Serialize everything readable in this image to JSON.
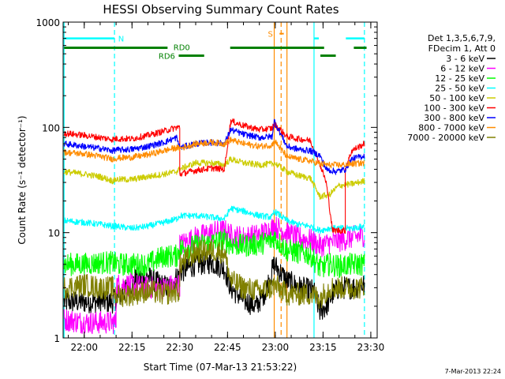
{
  "chart_data": {
    "type": "line",
    "title": "HESSI Observing Summary Count Rates",
    "xlabel": "Start Time (07-Mar-13 21:53:22)",
    "ylabel": "Count Rate (s⁻¹ detector⁻¹)",
    "x_ticks": [
      "22:00",
      "22:15",
      "22:30",
      "22:45",
      "23:00",
      "23:15",
      "23:30"
    ],
    "x_range": [
      "21:53:22",
      "23:32:00"
    ],
    "y_ticks": [
      "1",
      "10",
      "100",
      "1000"
    ],
    "ylim": [
      1,
      1000
    ],
    "y_scale": "log",
    "legend_header": [
      "Det 1,3,5,6,7,9,",
      "FDecim 1, Att 0"
    ],
    "legend_position": "right",
    "footer_date": "7-Mar-2013 22:24",
    "annotations": [
      {
        "label": "N",
        "color": "#00ffff",
        "y": 700
      },
      {
        "label": "S",
        "color": "#ff8c00",
        "y": 700
      },
      {
        "label": "RD0",
        "color": "#008000",
        "y": 570
      },
      {
        "label": "RD6",
        "color": "#008000",
        "y": 480
      }
    ],
    "vertical_markers": [
      {
        "time": "21:53:40",
        "color": "#00ffff",
        "style": "solid"
      },
      {
        "time": "22:09:30",
        "color": "#00ffff",
        "style": "dashed"
      },
      {
        "time": "22:59:40",
        "color": "#ff8c00",
        "style": "solid"
      },
      {
        "time": "23:01:50",
        "color": "#ff8c00",
        "style": "dashed"
      },
      {
        "time": "23:03:40",
        "color": "#ff8c00",
        "style": "solid"
      },
      {
        "time": "23:12:10",
        "color": "#00ffff",
        "style": "solid"
      },
      {
        "time": "23:28:00",
        "color": "#00ffff",
        "style": "dashed"
      }
    ],
    "series": [
      {
        "name": "3 - 6 keV",
        "color": "#000000",
        "points": [
          [
            "21:53:40",
            2.2
          ],
          [
            "22:09:00",
            2.2
          ],
          [
            "22:13:00",
            2.8
          ],
          [
            "22:16:00",
            3.6
          ],
          [
            "22:20:00",
            3.8
          ],
          [
            "22:24:00",
            3.2
          ],
          [
            "22:27:00",
            3.0
          ],
          [
            "22:30:00",
            4.2
          ],
          [
            "22:35:00",
            5.0
          ],
          [
            "22:40:00",
            5.2
          ],
          [
            "22:44:00",
            4.6
          ],
          [
            "22:46:00",
            3.0
          ],
          [
            "22:50:00",
            2.3
          ],
          [
            "22:54:00",
            2.0
          ],
          [
            "22:57:00",
            2.8
          ],
          [
            "22:59:40",
            5.0
          ],
          [
            "23:03:40",
            3.5
          ],
          [
            "23:08:00",
            3.0
          ],
          [
            "23:12:00",
            2.8
          ],
          [
            "23:14:00",
            1.8
          ],
          [
            "23:16:00",
            2.0
          ],
          [
            "23:18:00",
            2.6
          ],
          [
            "23:20:00",
            3.0
          ],
          [
            "23:24:00",
            3.0
          ],
          [
            "23:28:00",
            3.2
          ]
        ]
      },
      {
        "name": "6 - 12 keV",
        "color": "#ff00ff",
        "points": [
          [
            "21:53:40",
            1.5
          ],
          [
            "22:00:00",
            1.4
          ],
          [
            "22:05:00",
            1.4
          ],
          [
            "22:09:00",
            1.4
          ],
          [
            "22:10:00",
            3.2
          ],
          [
            "22:15:00",
            3.2
          ],
          [
            "22:20:00",
            3.0
          ],
          [
            "22:25:00",
            3.0
          ],
          [
            "22:29:00",
            3.2
          ],
          [
            "22:30:00",
            7.6
          ],
          [
            "22:35:00",
            9.0
          ],
          [
            "22:40:00",
            10.0
          ],
          [
            "22:44:00",
            10.5
          ],
          [
            "22:46:00",
            9.5
          ],
          [
            "22:50:00",
            9.0
          ],
          [
            "22:55:00",
            9.5
          ],
          [
            "22:59:00",
            11.0
          ],
          [
            "22:59:40",
            11.5
          ],
          [
            "23:03:40",
            10.0
          ],
          [
            "23:07:00",
            9.0
          ],
          [
            "23:11:00",
            8.5
          ],
          [
            "23:14:00",
            7.5
          ],
          [
            "23:17:00",
            8.0
          ],
          [
            "23:21:00",
            8.5
          ],
          [
            "23:24:00",
            9.0
          ],
          [
            "23:28:00",
            9.5
          ]
        ]
      },
      {
        "name": "12 - 25 keV",
        "color": "#00ff00",
        "points": [
          [
            "21:53:40",
            5.0
          ],
          [
            "22:00:00",
            5.0
          ],
          [
            "22:05:00",
            5.2
          ],
          [
            "22:09:00",
            5.2
          ],
          [
            "22:10:00",
            5.0
          ],
          [
            "22:15:00",
            5.0
          ],
          [
            "22:20:00",
            5.0
          ],
          [
            "22:25:00",
            6.0
          ],
          [
            "22:29:00",
            6.0
          ],
          [
            "22:30:00",
            7.0
          ],
          [
            "22:35:00",
            7.5
          ],
          [
            "22:40:00",
            8.0
          ],
          [
            "22:44:00",
            8.5
          ],
          [
            "22:46:00",
            7.8
          ],
          [
            "22:50:00",
            7.5
          ],
          [
            "22:55:00",
            7.8
          ],
          [
            "22:59:00",
            8.5
          ],
          [
            "22:59:40",
            9.0
          ],
          [
            "23:03:40",
            6.8
          ],
          [
            "23:07:00",
            6.5
          ],
          [
            "23:11:00",
            6.2
          ],
          [
            "23:14:00",
            4.6
          ],
          [
            "23:17:00",
            5.0
          ],
          [
            "23:20:00",
            4.8
          ],
          [
            "23:24:00",
            5.0
          ],
          [
            "23:28:00",
            5.0
          ]
        ]
      },
      {
        "name": "25 - 50 keV",
        "color": "#00ffff",
        "points": [
          [
            "21:53:40",
            13.0
          ],
          [
            "22:00:00",
            12.5
          ],
          [
            "22:05:00",
            12.0
          ],
          [
            "22:09:00",
            11.5
          ],
          [
            "22:10:00",
            11.5
          ],
          [
            "22:15:00",
            11.0
          ],
          [
            "22:20:00",
            11.5
          ],
          [
            "22:25:00",
            12.5
          ],
          [
            "22:29:00",
            13.5
          ],
          [
            "22:30:00",
            14.5
          ],
          [
            "22:35:00",
            14.5
          ],
          [
            "22:40:00",
            14.0
          ],
          [
            "22:44:00",
            13.5
          ],
          [
            "22:46:00",
            17.0
          ],
          [
            "22:50:00",
            16.0
          ],
          [
            "22:55:00",
            14.5
          ],
          [
            "22:59:00",
            14.0
          ],
          [
            "22:59:40",
            16.0
          ],
          [
            "23:03:40",
            13.0
          ],
          [
            "23:07:00",
            12.0
          ],
          [
            "23:11:00",
            11.5
          ],
          [
            "23:14:00",
            10.5
          ],
          [
            "23:17:00",
            11.0
          ],
          [
            "23:21:00",
            11.0
          ],
          [
            "23:24:00",
            11.0
          ],
          [
            "23:28:00",
            11.5
          ]
        ]
      },
      {
        "name": "50 - 100 keV",
        "color": "#cccc00",
        "points": [
          [
            "21:53:40",
            38.0
          ],
          [
            "22:00:00",
            36.0
          ],
          [
            "22:05:00",
            34.0
          ],
          [
            "22:09:00",
            31.0
          ],
          [
            "22:10:00",
            32.0
          ],
          [
            "22:15:00",
            32.0
          ],
          [
            "22:20:00",
            34.0
          ],
          [
            "22:25:00",
            36.0
          ],
          [
            "22:29:00",
            38.0
          ],
          [
            "22:30:00",
            40.0
          ],
          [
            "22:35:00",
            46.0
          ],
          [
            "22:40:00",
            46.0
          ],
          [
            "22:44:00",
            44.0
          ],
          [
            "22:46:00",
            50.0
          ],
          [
            "22:50:00",
            46.0
          ],
          [
            "22:55:00",
            44.0
          ],
          [
            "22:59:00",
            45.0
          ],
          [
            "22:59:40",
            46.0
          ],
          [
            "23:03:40",
            38.0
          ],
          [
            "23:07:00",
            35.0
          ],
          [
            "23:11:00",
            33.0
          ],
          [
            "23:14:00",
            22.0
          ],
          [
            "23:17:00",
            23.0
          ],
          [
            "23:20:00",
            28.0
          ],
          [
            "23:24:00",
            29.0
          ],
          [
            "23:28:00",
            31.0
          ]
        ]
      },
      {
        "name": "100 - 300 keV",
        "color": "#ff0000",
        "points": [
          [
            "21:53:40",
            88.0
          ],
          [
            "22:00:00",
            84.0
          ],
          [
            "22:05:00",
            80.0
          ],
          [
            "22:09:00",
            77.0
          ],
          [
            "22:10:00",
            78.0
          ],
          [
            "22:15:00",
            78.0
          ],
          [
            "22:20:00",
            84.0
          ],
          [
            "22:25:00",
            92.0
          ],
          [
            "22:29:00",
            100.0
          ],
          [
            "22:30:00",
            36.0
          ],
          [
            "22:35:00",
            39.0
          ],
          [
            "22:40:00",
            41.0
          ],
          [
            "22:44:00",
            40.0
          ],
          [
            "22:46:00",
            115.0
          ],
          [
            "22:50:00",
            104.0
          ],
          [
            "22:55:00",
            95.0
          ],
          [
            "22:59:00",
            98.0
          ],
          [
            "22:59:40",
            108.0
          ],
          [
            "23:03:40",
            82.0
          ],
          [
            "23:07:00",
            78.0
          ],
          [
            "23:11:00",
            75.0
          ],
          [
            "23:14:00",
            45.0
          ],
          [
            "23:16:00",
            30.0
          ],
          [
            "23:18:00",
            10.5
          ],
          [
            "23:21:00",
            10.5
          ],
          [
            "23:22:00",
            40.0
          ],
          [
            "23:24:00",
            60.0
          ],
          [
            "23:28:00",
            70.0
          ]
        ]
      },
      {
        "name": "300 - 800 keV",
        "color": "#0000ff",
        "points": [
          [
            "21:53:40",
            70.0
          ],
          [
            "22:00:00",
            66.0
          ],
          [
            "22:05:00",
            63.0
          ],
          [
            "22:09:00",
            60.0
          ],
          [
            "22:10:00",
            61.0
          ],
          [
            "22:15:00",
            62.0
          ],
          [
            "22:20:00",
            66.0
          ],
          [
            "22:25:00",
            72.0
          ],
          [
            "22:29:00",
            80.0
          ],
          [
            "22:30:00",
            64.0
          ],
          [
            "22:35:00",
            70.0
          ],
          [
            "22:40:00",
            72.0
          ],
          [
            "22:44:00",
            70.0
          ],
          [
            "22:46:00",
            95.0
          ],
          [
            "22:50:00",
            86.0
          ],
          [
            "22:55:00",
            80.0
          ],
          [
            "22:59:00",
            82.0
          ],
          [
            "22:59:40",
            115.0
          ],
          [
            "23:03:40",
            66.0
          ],
          [
            "23:07:00",
            62.0
          ],
          [
            "23:11:00",
            60.0
          ],
          [
            "23:14:00",
            54.0
          ],
          [
            "23:16:00",
            40.0
          ],
          [
            "23:19:00",
            38.0
          ],
          [
            "23:22:00",
            40.0
          ],
          [
            "23:24:00",
            50.0
          ],
          [
            "23:28:00",
            54.0
          ]
        ]
      },
      {
        "name": "800 - 7000 keV",
        "color": "#ff8c00",
        "points": [
          [
            "21:53:40",
            58.0
          ],
          [
            "22:00:00",
            56.0
          ],
          [
            "22:05:00",
            53.0
          ],
          [
            "22:09:00",
            50.0
          ],
          [
            "22:10:00",
            51.0
          ],
          [
            "22:15:00",
            52.0
          ],
          [
            "22:20:00",
            55.0
          ],
          [
            "22:25:00",
            60.0
          ],
          [
            "22:29:00",
            64.0
          ],
          [
            "22:30:00",
            63.0
          ],
          [
            "22:35:00",
            70.0
          ],
          [
            "22:40:00",
            72.0
          ],
          [
            "22:44:00",
            70.0
          ],
          [
            "22:46:00",
            76.0
          ],
          [
            "22:50:00",
            70.0
          ],
          [
            "22:55:00",
            66.0
          ],
          [
            "22:59:00",
            68.0
          ],
          [
            "22:59:40",
            75.0
          ],
          [
            "23:03:40",
            53.0
          ],
          [
            "23:07:00",
            50.0
          ],
          [
            "23:11:00",
            48.0
          ],
          [
            "23:14:00",
            45.0
          ],
          [
            "23:17:00",
            44.0
          ],
          [
            "23:21:00",
            44.0
          ],
          [
            "23:24:00",
            45.0
          ],
          [
            "23:28:00",
            46.0
          ]
        ]
      },
      {
        "name": "7000 - 20000 keV",
        "color": "#808000",
        "points": [
          [
            "21:53:40",
            3.0
          ],
          [
            "22:00:00",
            3.2
          ],
          [
            "22:05:00",
            3.0
          ],
          [
            "22:09:00",
            3.0
          ],
          [
            "22:10:00",
            2.5
          ],
          [
            "22:15:00",
            2.6
          ],
          [
            "22:20:00",
            2.8
          ],
          [
            "22:25:00",
            2.6
          ],
          [
            "22:29:00",
            2.8
          ],
          [
            "22:30:00",
            5.0
          ],
          [
            "22:35:00",
            6.5
          ],
          [
            "22:40:00",
            6.8
          ],
          [
            "22:44:00",
            6.5
          ],
          [
            "22:46:00",
            3.5
          ],
          [
            "22:50:00",
            3.0
          ],
          [
            "22:55:00",
            2.8
          ],
          [
            "22:59:00",
            3.0
          ],
          [
            "22:59:40",
            3.2
          ],
          [
            "23:03:40",
            2.6
          ],
          [
            "23:07:00",
            2.6
          ],
          [
            "23:11:00",
            2.6
          ],
          [
            "23:14:00",
            2.4
          ],
          [
            "23:17:00",
            3.0
          ],
          [
            "23:21:00",
            3.0
          ],
          [
            "23:24:00",
            3.0
          ],
          [
            "23:28:00",
            3.0
          ]
        ]
      }
    ]
  }
}
